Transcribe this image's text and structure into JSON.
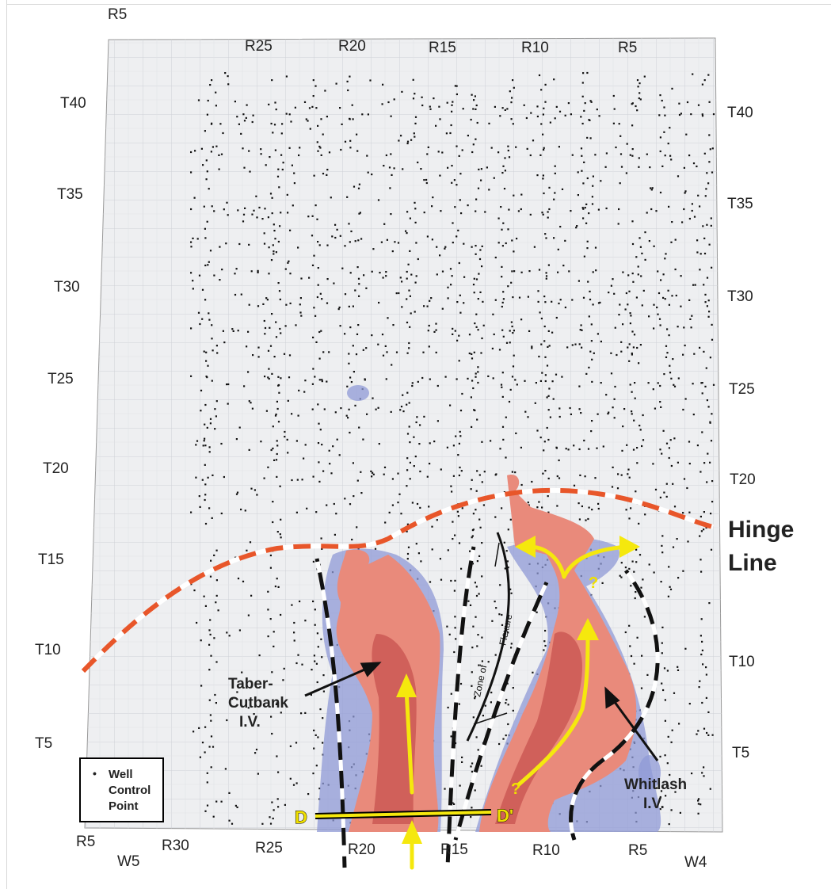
{
  "map": {
    "top_ranges": [
      "R5",
      "R25",
      "R20",
      "R15",
      "R10",
      "R5"
    ],
    "bottom_ranges": [
      "R5",
      "W5",
      "R30",
      "R25",
      "R20",
      "R15",
      "R10",
      "R5",
      "W4"
    ],
    "left_townships": [
      "T40",
      "T35",
      "T30",
      "T25",
      "T20",
      "T15",
      "T10",
      "T5"
    ],
    "right_townships": [
      "T40",
      "T35",
      "T30",
      "T25",
      "T20",
      "T10",
      "T5"
    ],
    "hinge_line_label": [
      "Hinge",
      "Line"
    ],
    "taber_label": [
      "Taber-",
      "Cutbank",
      "I.V."
    ],
    "whitlash_label": [
      "Whitlash",
      "I.V."
    ],
    "flexure_label": [
      "Zone of",
      "Flexure"
    ],
    "section_start": "D",
    "section_end": "D'",
    "question_mark": "?",
    "legend": {
      "bullet": "•",
      "line1": "Well",
      "line2": "Control",
      "line3": "Point"
    },
    "colors": {
      "hinge_line": "#e8562a",
      "valley_fill": "#e98a7b",
      "valley_core": "#d0605a",
      "halo": "#8f9ad6",
      "flow_arrow": "#f5e80d",
      "map_bg": "#eeeff1",
      "grid": "#c9c9cf"
    }
  }
}
